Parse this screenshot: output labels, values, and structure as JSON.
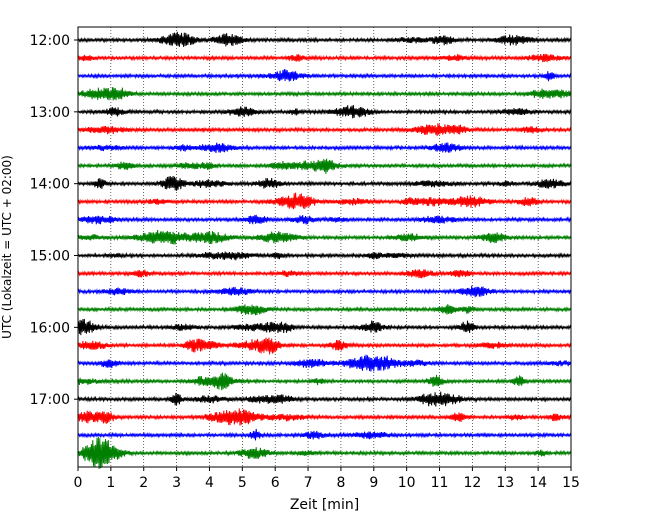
{
  "chart_data": {
    "type": "line",
    "xlabel": "Zeit  [min]",
    "ylabel": "UTC (Lokalzeit = UTC + 02:00)",
    "xlim": [
      0,
      15
    ],
    "xticks": [
      0,
      1,
      2,
      3,
      4,
      5,
      6,
      7,
      8,
      9,
      10,
      11,
      12,
      13,
      14,
      15
    ],
    "xtick_labels": [
      "0",
      "1",
      "2",
      "3",
      "4",
      "5",
      "6",
      "7",
      "8",
      "9",
      "10",
      "11",
      "12",
      "13",
      "14",
      "15"
    ],
    "yticks": [
      {
        "label": "12:00",
        "row": 0
      },
      {
        "label": "13:00",
        "row": 4
      },
      {
        "label": "14:00",
        "row": 8
      },
      {
        "label": "15:00",
        "row": 12
      },
      {
        "label": "16:00",
        "row": 16
      },
      {
        "label": "17:00",
        "row": 20
      }
    ],
    "grid": "vertical dotted at each minute",
    "colors": [
      "#000000",
      "#ff0000",
      "#0000ff",
      "#008000"
    ],
    "traces": [
      {
        "start": "12:00",
        "color": "#000000",
        "end_min": 15
      },
      {
        "start": "12:15",
        "color": "#ff0000",
        "end_min": 15
      },
      {
        "start": "12:30",
        "color": "#0000ff",
        "end_min": 15
      },
      {
        "start": "12:45",
        "color": "#008000",
        "end_min": 15
      },
      {
        "start": "13:00",
        "color": "#000000",
        "end_min": 15
      },
      {
        "start": "13:15",
        "color": "#ff0000",
        "end_min": 15
      },
      {
        "start": "13:30",
        "color": "#0000ff",
        "end_min": 15
      },
      {
        "start": "13:45",
        "color": "#008000",
        "end_min": 15
      },
      {
        "start": "14:00",
        "color": "#000000",
        "end_min": 15
      },
      {
        "start": "14:15",
        "color": "#ff0000",
        "end_min": 15
      },
      {
        "start": "14:30",
        "color": "#0000ff",
        "end_min": 15
      },
      {
        "start": "14:45",
        "color": "#008000",
        "end_min": 15
      },
      {
        "start": "15:00",
        "color": "#000000",
        "end_min": 15
      },
      {
        "start": "15:15",
        "color": "#ff0000",
        "end_min": 15
      },
      {
        "start": "15:30",
        "color": "#0000ff",
        "end_min": 15
      },
      {
        "start": "15:45",
        "color": "#008000",
        "end_min": 15
      },
      {
        "start": "16:00",
        "color": "#000000",
        "end_min": 15
      },
      {
        "start": "16:15",
        "color": "#ff0000",
        "end_min": 15
      },
      {
        "start": "16:30",
        "color": "#0000ff",
        "end_min": 15
      },
      {
        "start": "16:45",
        "color": "#008000",
        "end_min": 15
      },
      {
        "start": "17:00",
        "color": "#000000",
        "end_min": 15
      },
      {
        "start": "17:15",
        "color": "#ff0000",
        "end_min": 15
      },
      {
        "start": "17:30",
        "color": "#0000ff",
        "end_min": 15
      },
      {
        "start": "17:45",
        "color": "#008000",
        "end_min": 15
      }
    ]
  }
}
